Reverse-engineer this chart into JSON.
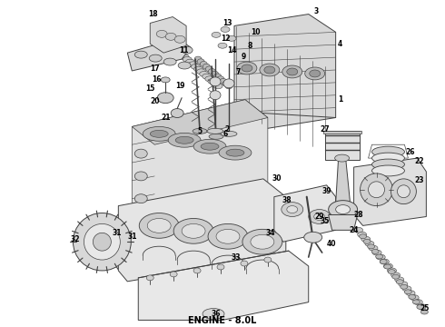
{
  "title": "ENGINE - 8.0L",
  "title_fontsize": 7,
  "background_color": "#ffffff",
  "line_color": "#404040",
  "text_color": "#000000",
  "fig_width": 4.9,
  "fig_height": 3.6,
  "dpi": 100
}
